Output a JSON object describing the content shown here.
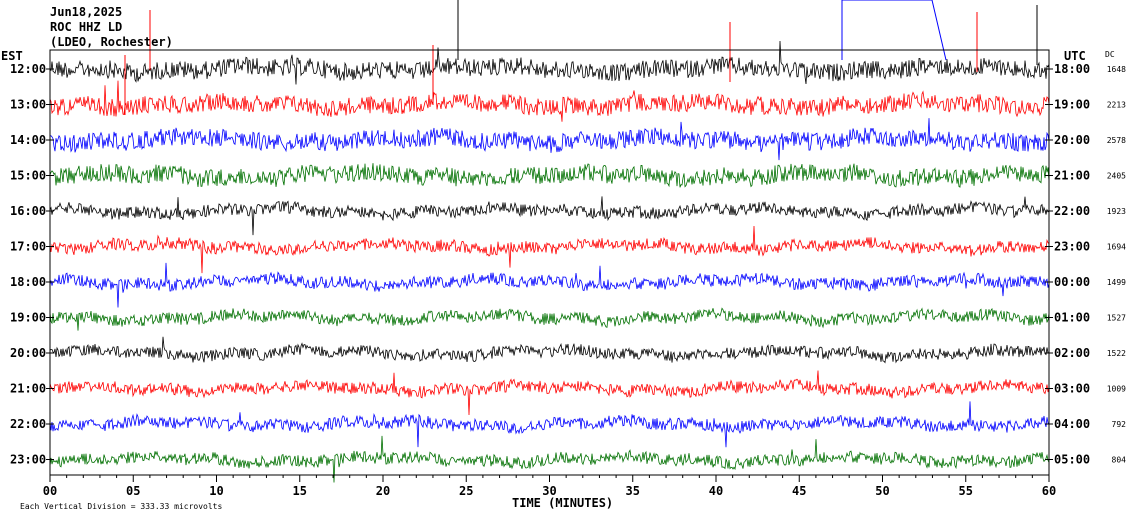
{
  "header": {
    "date": "Jun18,2025",
    "station": "ROC HHZ LD",
    "place": "(LDEO, Rochester)"
  },
  "labels": {
    "left_zone": "EST",
    "right_zone": "UTC",
    "dc": "DC",
    "xlabel": "TIME (MINUTES)",
    "footer": "Each Vertical Division =  333.33 microvolts"
  },
  "colors": {
    "cycle": [
      "#000000",
      "#ff0000",
      "#0000ff",
      "#007000"
    ],
    "frame": "#000000"
  },
  "chart_data": {
    "type": "line",
    "title": "",
    "xlabel": "TIME (MINUTES)",
    "ylabel": "",
    "xlim": [
      0,
      60
    ],
    "x_ticks": [
      "00",
      "05",
      "10",
      "15",
      "20",
      "25",
      "30",
      "35",
      "40",
      "45",
      "50",
      "55",
      "60"
    ],
    "rows": [
      {
        "est": "12:00",
        "utc": "18:00",
        "dc": "1648"
      },
      {
        "est": "13:00",
        "utc": "19:00",
        "dc": "2213"
      },
      {
        "est": "14:00",
        "utc": "20:00",
        "dc": "2578"
      },
      {
        "est": "15:00",
        "utc": "21:00",
        "dc": "2405"
      },
      {
        "est": "16:00",
        "utc": "22:00",
        "dc": "1923"
      },
      {
        "est": "17:00",
        "utc": "23:00",
        "dc": "1694"
      },
      {
        "est": "18:00",
        "utc": "00:00",
        "dc": "1499"
      },
      {
        "est": "19:00",
        "utc": "01:00",
        "dc": "1527"
      },
      {
        "est": "20:00",
        "utc": "02:00",
        "dc": "1522"
      },
      {
        "est": "21:00",
        "utc": "03:00",
        "dc": "1009"
      },
      {
        "est": "22:00",
        "utc": "04:00",
        "dc": "792"
      },
      {
        "est": "23:00",
        "utc": "05:00",
        "dc": "804"
      }
    ],
    "grid": false
  }
}
